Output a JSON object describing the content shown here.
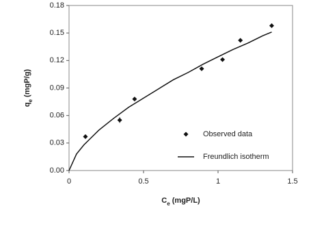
{
  "chart_data": {
    "type": "scatter-line",
    "xlabel": [
      "C",
      "e",
      " (mgP/L)"
    ],
    "ylabel": [
      "q",
      "e",
      " (mgP/g)"
    ],
    "xlim": [
      0,
      1.5
    ],
    "xticks": [
      0,
      0.5,
      1,
      1.5
    ],
    "ylim": [
      0,
      0.18
    ],
    "yticks": [
      {
        "value": 0,
        "label": "0.00"
      },
      {
        "value": 0.03,
        "label": "0.03"
      },
      {
        "value": 0.06,
        "label": "0.06"
      },
      {
        "value": 0.09,
        "label": "0.09"
      },
      {
        "value": 0.12,
        "label": "0.12"
      },
      {
        "value": 0.15,
        "label": "0.15"
      },
      {
        "value": 0.18,
        "label": "0.18"
      }
    ],
    "legend": "lower right",
    "series": [
      {
        "name": "Observed data",
        "type": "scatter",
        "color": "#111111",
        "x": [
          0.11,
          0.34,
          0.44,
          0.89,
          1.03,
          1.15,
          1.36
        ],
        "values": [
          0.037,
          0.055,
          0.078,
          0.111,
          0.121,
          0.142,
          0.158
        ],
        "errors": [
          0.002,
          0.003,
          0.002,
          0.002,
          0.002,
          0.002,
          0.002
        ]
      },
      {
        "name": "Freundlich isotherm",
        "type": "line",
        "color": "#111111",
        "x": [
          0,
          0.05,
          0.1,
          0.2,
          0.3,
          0.4,
          0.5,
          0.6,
          0.7,
          0.8,
          0.9,
          1.0,
          1.1,
          1.2,
          1.3,
          1.36
        ],
        "values": [
          0,
          0.018,
          0.028,
          0.044,
          0.057,
          0.069,
          0.079,
          0.089,
          0.099,
          0.107,
          0.116,
          0.124,
          0.132,
          0.139,
          0.147,
          0.151
        ]
      }
    ]
  }
}
